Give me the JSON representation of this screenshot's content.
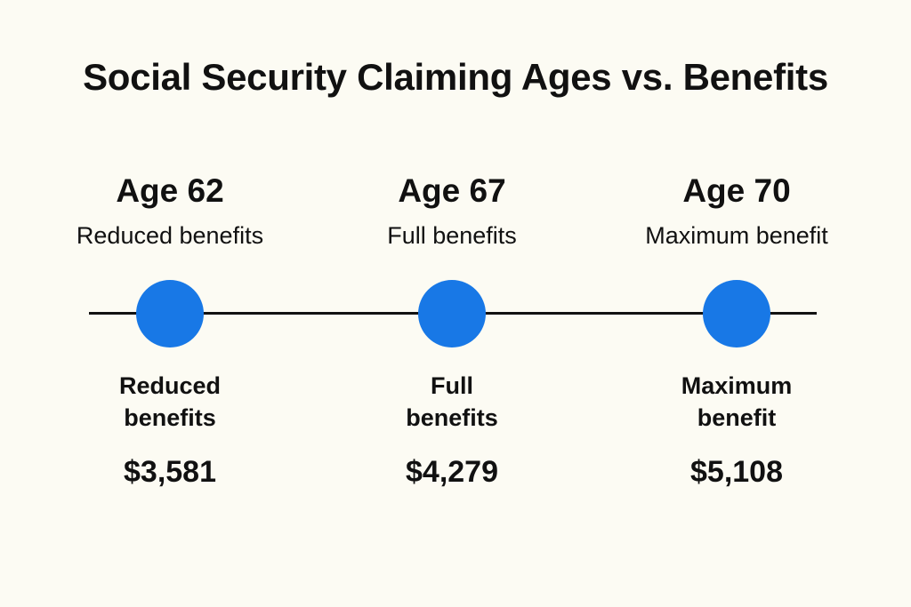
{
  "title": "Social Security Claiming Ages vs. Benefits",
  "colors": {
    "background": "#fcfbf3",
    "dot": "#1878e6",
    "text": "#111111"
  },
  "stages": [
    {
      "age": "Age 62",
      "subtitle": "Reduced benefits",
      "label_line1": "Reduced",
      "label_line2": "benefits",
      "amount": "$3,581"
    },
    {
      "age": "Age 67",
      "subtitle": "Full benefits",
      "label_line1": "Full",
      "label_line2": "benefits",
      "amount": "$4,279"
    },
    {
      "age": "Age 70",
      "subtitle": "Maximum benefit",
      "label_line1": "Maximum",
      "label_line2": "benefit",
      "amount": "$5,108"
    }
  ]
}
